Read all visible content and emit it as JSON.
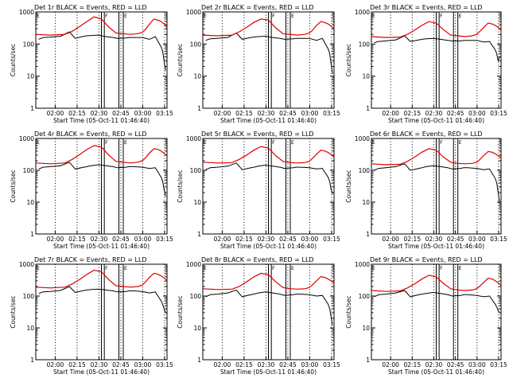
{
  "figure": {
    "x_axis_label": "Start Time (05-Oct-11 01:46:40)",
    "y_axis_label": "Counts/sec",
    "x_ticks": [
      "02:00",
      "02:15",
      "02:30",
      "02:45",
      "03:00",
      "03:15"
    ],
    "y_ticks": [
      "1",
      "10",
      "100",
      "1000"
    ],
    "flag_labels": [
      "F",
      "E"
    ],
    "colors": {
      "events": "#000000",
      "lld": "#dd0000",
      "axes": "#000000"
    }
  },
  "chart_data": [
    {
      "type": "line",
      "title": "Det 1r BLACK = Events, RED = LLD",
      "xlabel": "Start Time (05-Oct-11 01:46:40)",
      "ylabel": "Counts/sec",
      "y_scale": "log",
      "ylim": [
        1,
        1000
      ],
      "x_unit": "minutes after 01:46:40",
      "series": [
        {
          "name": "Events",
          "color": "#000000",
          "x": [
            2,
            5,
            10,
            17,
            23,
            27,
            33,
            35,
            38,
            43,
            48,
            53,
            56,
            62,
            64,
            67,
            73,
            78,
            82,
            86,
            87,
            88,
            89
          ],
          "y": [
            140,
            160,
            165,
            175,
            240,
            150,
            175,
            180,
            185,
            190,
            170,
            160,
            150,
            155,
            160,
            160,
            160,
            140,
            170,
            80,
            60,
            30,
            15
          ]
        },
        {
          "name": "LLD",
          "color": "#dd0000",
          "x": [
            0,
            10,
            20,
            25,
            30,
            35,
            40,
            45,
            50,
            55,
            60,
            65,
            70,
            73,
            75,
            78,
            81,
            84,
            86,
            88,
            90
          ],
          "y": [
            200,
            190,
            200,
            250,
            350,
            500,
            700,
            600,
            340,
            220,
            210,
            200,
            210,
            230,
            280,
            420,
            600,
            550,
            500,
            420,
            330
          ]
        }
      ]
    },
    {
      "type": "line",
      "title": "Det 2r BLACK = Events, RED = LLD",
      "xlabel": "Start Time (05-Oct-11 01:46:40)",
      "ylabel": "Counts/sec",
      "y_scale": "log",
      "ylim": [
        1,
        1000
      ],
      "x_unit": "minutes after 01:46:40",
      "series": [
        {
          "name": "Events",
          "color": "#000000",
          "x": [
            2,
            5,
            10,
            17,
            23,
            27,
            33,
            35,
            38,
            43,
            48,
            53,
            56,
            62,
            64,
            67,
            73,
            78,
            82,
            86,
            87,
            88,
            89
          ],
          "y": [
            130,
            145,
            150,
            160,
            220,
            140,
            160,
            165,
            170,
            175,
            160,
            150,
            140,
            145,
            150,
            150,
            150,
            130,
            150,
            70,
            50,
            25,
            12
          ]
        },
        {
          "name": "LLD",
          "color": "#dd0000",
          "x": [
            0,
            10,
            20,
            25,
            30,
            35,
            40,
            45,
            50,
            55,
            60,
            65,
            70,
            73,
            75,
            78,
            81,
            84,
            86,
            88,
            90
          ],
          "y": [
            190,
            180,
            190,
            240,
            330,
            470,
            600,
            560,
            320,
            210,
            200,
            190,
            200,
            220,
            260,
            380,
            500,
            460,
            420,
            360,
            300
          ]
        }
      ]
    },
    {
      "type": "line",
      "title": "Det 3r BLACK = Events, RED = LLD",
      "xlabel": "Start Time (05-Oct-11 01:46:40)",
      "ylabel": "Counts/sec",
      "y_scale": "log",
      "ylim": [
        1,
        1000
      ],
      "x_unit": "minutes after 01:46:40",
      "series": [
        {
          "name": "Events",
          "color": "#000000",
          "x": [
            2,
            5,
            10,
            17,
            23,
            27,
            33,
            35,
            38,
            43,
            48,
            53,
            56,
            62,
            64,
            67,
            73,
            78,
            82,
            86,
            87,
            88,
            89
          ],
          "y": [
            110,
            120,
            125,
            135,
            180,
            120,
            135,
            140,
            145,
            150,
            140,
            130,
            125,
            125,
            130,
            130,
            130,
            115,
            120,
            65,
            50,
            30,
            40
          ]
        },
        {
          "name": "LLD",
          "color": "#dd0000",
          "x": [
            0,
            10,
            20,
            25,
            30,
            35,
            40,
            45,
            50,
            55,
            60,
            65,
            70,
            73,
            75,
            78,
            81,
            84,
            86,
            88,
            90
          ],
          "y": [
            170,
            160,
            165,
            200,
            270,
            380,
            500,
            450,
            280,
            190,
            180,
            170,
            180,
            200,
            240,
            330,
            450,
            420,
            380,
            330,
            270
          ]
        }
      ]
    },
    {
      "type": "line",
      "title": "Det 4r BLACK = Events, RED = LLD",
      "xlabel": "Start Time (05-Oct-11 01:46:40)",
      "ylabel": "Counts/sec",
      "y_scale": "log",
      "ylim": [
        1,
        1000
      ],
      "x_unit": "minutes after 01:46:40",
      "series": [
        {
          "name": "Events",
          "color": "#000000",
          "x": [
            2,
            5,
            10,
            17,
            23,
            27,
            33,
            35,
            38,
            43,
            48,
            53,
            56,
            62,
            64,
            67,
            73,
            78,
            82,
            86,
            87,
            88,
            89
          ],
          "y": [
            110,
            125,
            130,
            140,
            180,
            110,
            125,
            130,
            140,
            150,
            140,
            130,
            120,
            125,
            130,
            130,
            125,
            115,
            120,
            60,
            45,
            25,
            15
          ]
        },
        {
          "name": "LLD",
          "color": "#dd0000",
          "x": [
            0,
            10,
            20,
            25,
            30,
            35,
            40,
            45,
            50,
            55,
            60,
            65,
            70,
            73,
            75,
            78,
            81,
            84,
            86,
            88,
            90
          ],
          "y": [
            170,
            160,
            170,
            220,
            310,
            450,
            600,
            540,
            300,
            190,
            180,
            170,
            180,
            200,
            240,
            350,
            480,
            450,
            400,
            340,
            280
          ]
        }
      ]
    },
    {
      "type": "line",
      "title": "Det 5r BLACK = Events, RED = LLD",
      "xlabel": "Start Time (05-Oct-11 01:46:40)",
      "ylabel": "Counts/sec",
      "y_scale": "log",
      "ylim": [
        1,
        1000
      ],
      "x_unit": "minutes after 01:46:40",
      "series": [
        {
          "name": "Events",
          "color": "#000000",
          "x": [
            2,
            5,
            10,
            17,
            23,
            27,
            33,
            35,
            38,
            43,
            48,
            53,
            56,
            62,
            64,
            67,
            73,
            78,
            82,
            86,
            87,
            88,
            89
          ],
          "y": [
            105,
            120,
            125,
            135,
            170,
            105,
            120,
            125,
            135,
            145,
            135,
            125,
            115,
            120,
            125,
            125,
            120,
            110,
            115,
            60,
            45,
            25,
            18
          ]
        },
        {
          "name": "LLD",
          "color": "#dd0000",
          "x": [
            0,
            10,
            20,
            25,
            30,
            35,
            40,
            45,
            50,
            55,
            60,
            65,
            70,
            73,
            75,
            78,
            81,
            84,
            86,
            88,
            90
          ],
          "y": [
            180,
            170,
            175,
            220,
            300,
            430,
            560,
            500,
            290,
            190,
            175,
            170,
            175,
            190,
            230,
            320,
            430,
            400,
            360,
            310,
            260
          ]
        }
      ]
    },
    {
      "type": "line",
      "title": "Det 6r BLACK = Events, RED = LLD",
      "xlabel": "Start Time (05-Oct-11 01:46:40)",
      "ylabel": "Counts/sec",
      "y_scale": "log",
      "ylim": [
        1,
        1000
      ],
      "x_unit": "minutes after 01:46:40",
      "series": [
        {
          "name": "Events",
          "color": "#000000",
          "x": [
            2,
            5,
            10,
            17,
            23,
            27,
            33,
            35,
            38,
            43,
            48,
            53,
            56,
            62,
            64,
            67,
            73,
            78,
            82,
            86,
            87,
            88,
            89
          ],
          "y": [
            100,
            115,
            120,
            130,
            160,
            100,
            115,
            120,
            130,
            140,
            130,
            120,
            110,
            115,
            120,
            120,
            115,
            105,
            110,
            55,
            40,
            20,
            10
          ]
        },
        {
          "name": "LLD",
          "color": "#dd0000",
          "x": [
            0,
            10,
            20,
            25,
            30,
            35,
            40,
            45,
            50,
            55,
            60,
            65,
            70,
            73,
            75,
            78,
            81,
            84,
            86,
            88,
            90
          ],
          "y": [
            160,
            150,
            155,
            190,
            260,
            370,
            480,
            430,
            260,
            180,
            165,
            160,
            165,
            180,
            210,
            290,
            390,
            370,
            330,
            290,
            240
          ]
        }
      ]
    },
    {
      "type": "line",
      "title": "Det 7r BLACK = Events, RED = LLD",
      "xlabel": "Start Time (05-Oct-11 01:46:40)",
      "ylabel": "Counts/sec",
      "y_scale": "log",
      "ylim": [
        1,
        1000
      ],
      "x_unit": "minutes after 01:46:40",
      "series": [
        {
          "name": "Events",
          "color": "#000000",
          "x": [
            2,
            5,
            10,
            17,
            23,
            27,
            33,
            35,
            38,
            43,
            48,
            53,
            56,
            62,
            64,
            67,
            73,
            78,
            82,
            86,
            87,
            88,
            89
          ],
          "y": [
            120,
            135,
            140,
            150,
            200,
            130,
            150,
            155,
            160,
            165,
            155,
            145,
            135,
            140,
            145,
            145,
            140,
            125,
            135,
            70,
            55,
            40,
            30
          ]
        },
        {
          "name": "LLD",
          "color": "#dd0000",
          "x": [
            0,
            10,
            20,
            25,
            30,
            35,
            40,
            45,
            50,
            55,
            60,
            65,
            70,
            73,
            75,
            78,
            81,
            84,
            86,
            88,
            90
          ],
          "y": [
            190,
            180,
            190,
            240,
            330,
            480,
            650,
            580,
            330,
            210,
            200,
            190,
            200,
            220,
            270,
            390,
            520,
            480,
            430,
            370,
            310
          ]
        }
      ]
    },
    {
      "type": "line",
      "title": "Det 8r BLACK = Events, RED = LLD",
      "xlabel": "Start Time (05-Oct-11 01:46:40)",
      "ylabel": "Counts/sec",
      "y_scale": "log",
      "ylim": [
        1,
        1000
      ],
      "x_unit": "minutes after 01:46:40",
      "series": [
        {
          "name": "Events",
          "color": "#000000",
          "x": [
            2,
            5,
            10,
            17,
            23,
            27,
            33,
            35,
            38,
            43,
            48,
            53,
            56,
            62,
            64,
            67,
            73,
            78,
            82,
            86,
            87,
            88,
            89
          ],
          "y": [
            95,
            110,
            115,
            125,
            155,
            95,
            110,
            115,
            125,
            135,
            125,
            115,
            105,
            110,
            115,
            115,
            110,
            100,
            105,
            55,
            40,
            22,
            12
          ]
        },
        {
          "name": "LLD",
          "color": "#dd0000",
          "x": [
            0,
            10,
            20,
            25,
            30,
            35,
            40,
            45,
            50,
            55,
            60,
            65,
            70,
            73,
            75,
            78,
            81,
            84,
            86,
            88,
            90
          ],
          "y": [
            170,
            160,
            165,
            200,
            280,
            400,
            520,
            470,
            280,
            185,
            170,
            165,
            170,
            185,
            220,
            300,
            410,
            380,
            340,
            300,
            250
          ]
        }
      ]
    },
    {
      "type": "line",
      "title": "Det 9r BLACK = Events, RED = LLD",
      "xlabel": "Start Time (05-Oct-11 01:46:40)",
      "ylabel": "Counts/sec",
      "y_scale": "log",
      "ylim": [
        1,
        1000
      ],
      "x_unit": "minutes after 01:46:40",
      "series": [
        {
          "name": "Events",
          "color": "#000000",
          "x": [
            2,
            5,
            10,
            17,
            23,
            27,
            33,
            35,
            38,
            43,
            48,
            53,
            56,
            62,
            64,
            67,
            73,
            78,
            82,
            86,
            87,
            88,
            89
          ],
          "y": [
            95,
            110,
            115,
            125,
            150,
            95,
            110,
            115,
            120,
            130,
            120,
            110,
            100,
            105,
            110,
            110,
            105,
            95,
            100,
            55,
            45,
            35,
            30
          ]
        },
        {
          "name": "LLD",
          "color": "#dd0000",
          "x": [
            0,
            10,
            20,
            25,
            30,
            35,
            40,
            45,
            50,
            55,
            60,
            65,
            70,
            73,
            75,
            78,
            81,
            84,
            86,
            88,
            90
          ],
          "y": [
            150,
            140,
            145,
            180,
            240,
            340,
            450,
            400,
            250,
            170,
            155,
            150,
            155,
            170,
            200,
            270,
            360,
            340,
            300,
            260,
            220
          ]
        }
      ]
    }
  ]
}
